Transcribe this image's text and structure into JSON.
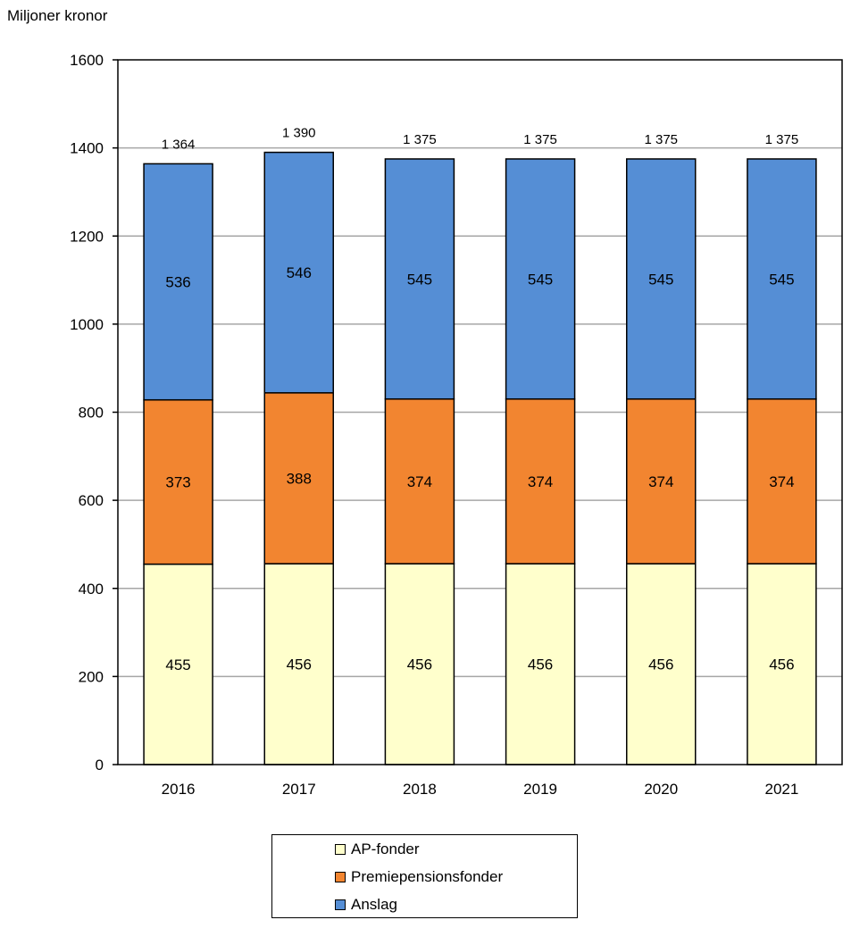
{
  "chart_data": {
    "type": "bar",
    "stacked": true,
    "ylabel": "Miljoner kronor",
    "ylim": [
      0,
      1600
    ],
    "yticks": [
      0,
      200,
      400,
      600,
      800,
      1000,
      1200,
      1400,
      1600
    ],
    "grid": true,
    "legend_position": "bottom",
    "categories": [
      "2016",
      "2017",
      "2018",
      "2019",
      "2020",
      "2021"
    ],
    "series": [
      {
        "name": "AP-fonder",
        "color": "#FFFFCC",
        "values": [
          455,
          456,
          456,
          456,
          456,
          456
        ],
        "labels": [
          "455",
          "456",
          "456",
          "456",
          "456",
          "456"
        ]
      },
      {
        "name": "Premiepensionsfonder",
        "color": "#F28530",
        "values": [
          373,
          388,
          374,
          374,
          374,
          374
        ],
        "labels": [
          "373",
          "388",
          "374",
          "374",
          "374",
          "374"
        ]
      },
      {
        "name": "Anslag",
        "color": "#558ED5",
        "values": [
          536,
          546,
          545,
          545,
          545,
          545
        ],
        "labels": [
          "536",
          "546",
          "545",
          "545",
          "545",
          "545"
        ]
      }
    ],
    "totals": [
      1364,
      1390,
      1375,
      1375,
      1375,
      1375
    ],
    "total_labels": [
      "1 364",
      "1 390",
      "1 375",
      "1 375",
      "1 375",
      "1 375"
    ]
  }
}
